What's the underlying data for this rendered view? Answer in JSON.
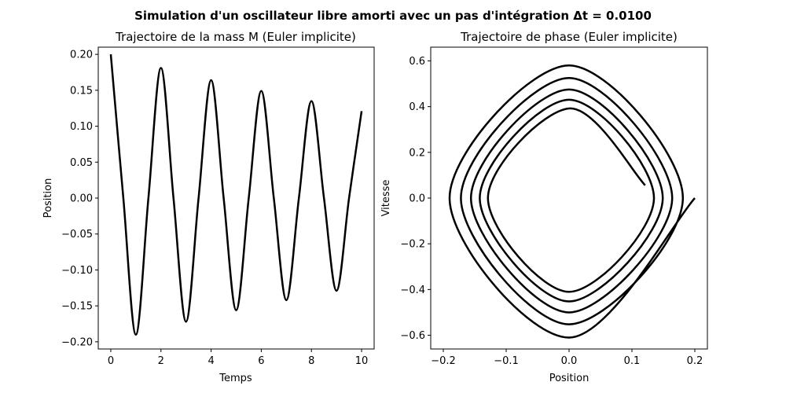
{
  "figure": {
    "suptitle": "Simulation d'un oscillateur libre amorti avec un pas d'intégration Δt = 0.0100",
    "line_color": "#000000"
  },
  "chart_data": [
    {
      "type": "line",
      "title": "Trajectoire de la mass M (Euler implicite)",
      "xlabel": "Temps",
      "ylabel": "Position",
      "xlim": [
        -0.5,
        10.5
      ],
      "ylim": [
        -0.21,
        0.21
      ],
      "xticks": [
        0,
        2,
        4,
        6,
        8,
        10
      ],
      "xtick_labels": [
        "0",
        "2",
        "4",
        "6",
        "8",
        "10"
      ],
      "yticks": [
        -0.2,
        -0.15,
        -0.1,
        -0.05,
        0.0,
        0.05,
        0.1,
        0.15,
        0.2
      ],
      "ytick_labels": [
        "−0.20",
        "−0.15",
        "−0.10",
        "−0.05",
        "0.00",
        "0.05",
        "0.10",
        "0.15",
        "0.20"
      ],
      "grid": false,
      "series": [
        {
          "x": [
            0,
            0.5,
            1,
            1.5,
            2,
            2.5,
            3,
            3.5,
            4,
            4.5,
            5,
            5.5,
            6,
            6.5,
            7,
            7.5,
            8,
            8.5,
            9,
            9.5,
            10
          ],
          "y": [
            0.2,
            0.0,
            -0.19,
            0.0,
            0.181,
            0.0,
            -0.172,
            0.0,
            0.164,
            0.0,
            -0.156,
            0.0,
            0.149,
            0.0,
            -0.142,
            0.0,
            0.135,
            0.0,
            -0.129,
            0.0,
            0.121
          ]
        }
      ]
    },
    {
      "type": "line",
      "title": "Trajectoire de phase (Euler implicite)",
      "xlabel": "Position",
      "ylabel": "Vitesse",
      "xlim": [
        -0.22,
        0.22
      ],
      "ylim": [
        -0.66,
        0.66
      ],
      "xticks": [
        -0.2,
        -0.1,
        0.0,
        0.1,
        0.2
      ],
      "xtick_labels": [
        "−0.2",
        "−0.1",
        "0.0",
        "0.1",
        "0.2"
      ],
      "yticks": [
        -0.6,
        -0.4,
        -0.2,
        0.0,
        0.2,
        0.4,
        0.6
      ],
      "ytick_labels": [
        "−0.6",
        "−0.4",
        "−0.2",
        "0.0",
        "0.2",
        "0.4",
        "0.6"
      ],
      "grid": false,
      "series": [
        {
          "x": [
            0.2,
            0.0,
            -0.19,
            0.0,
            0.181,
            0.0,
            -0.172,
            0.0,
            0.164,
            0.0,
            -0.156,
            0.0,
            0.149,
            0.0,
            -0.142,
            0.0,
            0.135,
            0.0,
            -0.129,
            0.0,
            0.121
          ],
          "y": [
            0.0,
            -0.61,
            0.0,
            0.58,
            0.0,
            -0.552,
            0.0,
            0.525,
            0.0,
            -0.5,
            0.0,
            0.475,
            0.0,
            -0.452,
            0.0,
            0.43,
            0.0,
            -0.41,
            0.0,
            0.392,
            0.056
          ]
        }
      ]
    }
  ]
}
